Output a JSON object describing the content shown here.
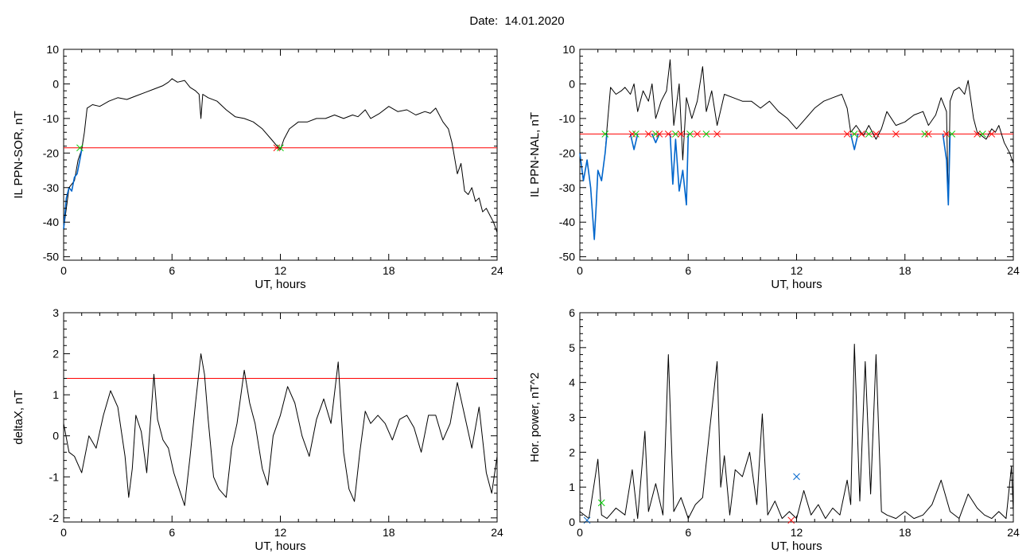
{
  "page": {
    "title": "Date:  14.01.2020"
  },
  "chart_data": [
    {
      "type": "line",
      "xlabel": "UT, hours",
      "ylabel": "IL PPN-SOR, nT",
      "xlim": [
        0,
        24
      ],
      "ylim": [
        -51,
        10
      ],
      "xticks": [
        0,
        6,
        12,
        18,
        24
      ],
      "yticks": [
        -50,
        -40,
        -30,
        -20,
        -10,
        0,
        10
      ],
      "threshold": {
        "value": -18.5,
        "color": "#ff0000"
      },
      "series": [
        {
          "color": "#000000",
          "x": [
            0,
            0.3,
            0.6,
            0.8,
            1.0,
            1.15,
            1.3,
            1.6,
            2,
            2.5,
            3,
            3.5,
            4,
            4.5,
            5,
            5.5,
            5.8,
            6,
            6.3,
            6.7,
            7,
            7.3,
            7.5,
            7.6,
            7.7,
            8,
            8.5,
            9,
            9.5,
            10,
            10.5,
            11,
            11.5,
            11.9,
            12,
            12.2,
            12.5,
            13,
            13.5,
            14,
            14.5,
            15,
            15.5,
            16,
            16.3,
            16.7,
            17,
            17.5,
            18,
            18.5,
            19,
            19.5,
            20,
            20.3,
            20.6,
            21,
            21.3,
            21.5,
            21.6,
            21.8,
            22,
            22.2,
            22.4,
            22.6,
            22.8,
            23,
            23.2,
            23.4,
            23.6,
            23.8,
            24
          ],
          "y": [
            -42,
            -30,
            -28,
            -22,
            -19,
            -14,
            -7,
            -6,
            -6.5,
            -5,
            -4,
            -4.5,
            -3.5,
            -2.5,
            -1.5,
            -0.5,
            0.5,
            1.5,
            0.5,
            1,
            -1,
            -2,
            -3,
            -10,
            -3,
            -4,
            -5,
            -7.5,
            -9.5,
            -10,
            -11,
            -13,
            -16,
            -18.5,
            -19,
            -16,
            -13,
            -11,
            -11,
            -10,
            -10,
            -9,
            -10,
            -9,
            -9.5,
            -7.5,
            -10,
            -8.5,
            -6.5,
            -8,
            -7.5,
            -9,
            -8,
            -8.5,
            -7,
            -11,
            -13,
            -17,
            -20,
            -26,
            -23,
            -31,
            -32,
            -30,
            -34,
            -33,
            -37,
            -36,
            -38,
            -40,
            -43
          ]
        },
        {
          "color": "#0066cc",
          "x": [
            0,
            0.15,
            0.3,
            0.45,
            0.6,
            0.75,
            0.9,
            1.0
          ],
          "y": [
            -42,
            -33,
            -30,
            -31,
            -27,
            -26,
            -22,
            -19
          ]
        }
      ],
      "markers": [
        {
          "x": 0.9,
          "y": -18.5,
          "color": "#00cc00"
        },
        {
          "x": 11.8,
          "y": -18.5,
          "color": "#ff0000"
        },
        {
          "x": 12.0,
          "y": -18.5,
          "color": "#00cc00"
        }
      ]
    },
    {
      "type": "line",
      "xlabel": "UT, hours",
      "ylabel": "IL PPN-NAL, nT",
      "xlim": [
        0,
        24
      ],
      "ylim": [
        -51,
        10
      ],
      "xticks": [
        0,
        6,
        12,
        18,
        24
      ],
      "yticks": [
        -50,
        -40,
        -30,
        -20,
        -10,
        0,
        10
      ],
      "threshold": {
        "value": -14.5,
        "color": "#ff0000"
      },
      "series": [
        {
          "color": "#000000",
          "x": [
            0,
            0.2,
            0.4,
            0.6,
            0.8,
            0.9,
            1.0,
            1.2,
            1.4,
            1.5,
            1.7,
            2,
            2.3,
            2.5,
            2.8,
            3,
            3.2,
            3.5,
            3.8,
            4,
            4.2,
            4.5,
            4.8,
            5.0,
            5.2,
            5.5,
            5.7,
            5.9,
            6.2,
            6.5,
            6.8,
            7,
            7.3,
            7.6,
            8,
            8.5,
            9,
            9.5,
            10,
            10.5,
            11,
            11.5,
            12,
            12.5,
            13,
            13.5,
            14,
            14.5,
            14.8,
            15.0,
            15.3,
            15.7,
            16,
            16.4,
            16.7,
            17,
            17.5,
            18,
            18.5,
            19,
            19.3,
            19.7,
            20,
            20.3,
            20.4,
            20.5,
            20.7,
            21,
            21.3,
            21.5,
            21.8,
            22,
            22.5,
            22.8,
            23,
            23.2,
            23.5,
            23.8,
            24
          ],
          "y": [
            -20,
            -28,
            -22,
            -30,
            -45,
            -36,
            -25,
            -28,
            -20,
            -13,
            -1,
            -3,
            -2,
            -1,
            -3,
            0,
            -8,
            -2,
            -5,
            0,
            -10,
            -5,
            -2,
            7,
            -12,
            0,
            -22,
            -4,
            -10,
            -5,
            5,
            -8,
            -2,
            -12,
            -3,
            -4,
            -5,
            -5,
            -7,
            -5,
            -8,
            -10,
            -13,
            -10,
            -7,
            -5,
            -4,
            -3,
            -7,
            -14,
            -12,
            -15,
            -12,
            -16,
            -13,
            -8,
            -12,
            -11,
            -9,
            -8,
            -12,
            -9,
            -4,
            -8,
            -35,
            -5,
            -2,
            -1,
            -3,
            1,
            -10,
            -14,
            -16,
            -13,
            -14,
            -12,
            -17,
            -20,
            -23
          ]
        },
        {
          "color": "#0066cc",
          "x": [
            0,
            0.2,
            0.4,
            0.6,
            0.8,
            0.9,
            1.0,
            1.2,
            1.4,
            1.5
          ],
          "y": [
            -20,
            -28,
            -22,
            -30,
            -45,
            -36,
            -25,
            -28,
            -20,
            -14.5
          ]
        },
        {
          "color": "#0066cc",
          "x": [
            2.8,
            3.0,
            3.2
          ],
          "y": [
            -14.5,
            -19,
            -14.5
          ]
        },
        {
          "color": "#0066cc",
          "x": [
            4.0,
            4.2,
            4.4
          ],
          "y": [
            -14.5,
            -17,
            -14.5
          ]
        },
        {
          "color": "#0066cc",
          "x": [
            5.0,
            5.15,
            5.3,
            5.5,
            5.7,
            5.9,
            6.0
          ],
          "y": [
            -14.5,
            -29,
            -16,
            -31,
            -25,
            -35,
            -14.5
          ]
        },
        {
          "color": "#0066cc",
          "x": [
            15.0,
            15.2,
            15.4
          ],
          "y": [
            -14.5,
            -19,
            -14.5
          ]
        },
        {
          "color": "#0066cc",
          "x": [
            20.1,
            20.3,
            20.4,
            20.5
          ],
          "y": [
            -14.5,
            -22,
            -35,
            -14.5
          ]
        }
      ],
      "markers": [
        {
          "x": 1.4,
          "y": -14.5,
          "color": "#00cc00"
        },
        {
          "x": 2.9,
          "y": -14.5,
          "color": "#ff0000"
        },
        {
          "x": 3.1,
          "y": -14.5,
          "color": "#00cc00"
        },
        {
          "x": 3.8,
          "y": -14.5,
          "color": "#ff0000"
        },
        {
          "x": 4.2,
          "y": -14.5,
          "color": "#00cc00"
        },
        {
          "x": 4.4,
          "y": -14.5,
          "color": "#ff0000"
        },
        {
          "x": 4.9,
          "y": -14.5,
          "color": "#ff0000"
        },
        {
          "x": 5.3,
          "y": -14.5,
          "color": "#00cc00"
        },
        {
          "x": 5.6,
          "y": -14.5,
          "color": "#ff0000"
        },
        {
          "x": 6.1,
          "y": -14.5,
          "color": "#00cc00"
        },
        {
          "x": 6.5,
          "y": -14.5,
          "color": "#ff0000"
        },
        {
          "x": 7.0,
          "y": -14.5,
          "color": "#00cc00"
        },
        {
          "x": 7.6,
          "y": -14.5,
          "color": "#ff0000"
        },
        {
          "x": 14.8,
          "y": -14.5,
          "color": "#ff0000"
        },
        {
          "x": 15.2,
          "y": -14.5,
          "color": "#00cc00"
        },
        {
          "x": 15.6,
          "y": -14.5,
          "color": "#ff0000"
        },
        {
          "x": 16.0,
          "y": -14.5,
          "color": "#00cc00"
        },
        {
          "x": 16.4,
          "y": -14.5,
          "color": "#ff0000"
        },
        {
          "x": 17.5,
          "y": -14.5,
          "color": "#ff0000"
        },
        {
          "x": 19.1,
          "y": -14.5,
          "color": "#00cc00"
        },
        {
          "x": 19.3,
          "y": -14.5,
          "color": "#ff0000"
        },
        {
          "x": 20.3,
          "y": -14.5,
          "color": "#ff0000"
        },
        {
          "x": 20.6,
          "y": -14.5,
          "color": "#00cc00"
        },
        {
          "x": 22.0,
          "y": -14.5,
          "color": "#ff0000"
        },
        {
          "x": 22.3,
          "y": -14.5,
          "color": "#00cc00"
        },
        {
          "x": 22.8,
          "y": -14.5,
          "color": "#ff0000"
        }
      ]
    },
    {
      "type": "line",
      "xlabel": "UT, hours",
      "ylabel": "deltaX, nT",
      "xlim": [
        0,
        24
      ],
      "ylim": [
        -2.1,
        3
      ],
      "xticks": [
        0,
        6,
        12,
        18,
        24
      ],
      "yticks": [
        -2,
        -1,
        0,
        1,
        2,
        3
      ],
      "threshold": {
        "value": 1.4,
        "color": "#ff0000"
      },
      "series": [
        {
          "color": "#000000",
          "x": [
            0,
            0.3,
            0.6,
            1.0,
            1.4,
            1.8,
            2.2,
            2.6,
            3.0,
            3.4,
            3.6,
            3.8,
            4.0,
            4.3,
            4.6,
            5.0,
            5.2,
            5.5,
            5.8,
            6.1,
            6.4,
            6.7,
            7.0,
            7.3,
            7.6,
            7.8,
            8.0,
            8.3,
            8.6,
            9.0,
            9.3,
            9.6,
            10.0,
            10.3,
            10.6,
            11.0,
            11.3,
            11.6,
            12.0,
            12.4,
            12.8,
            13.2,
            13.6,
            14.0,
            14.4,
            14.8,
            15.2,
            15.5,
            15.8,
            16.1,
            16.4,
            16.7,
            17.0,
            17.4,
            17.8,
            18.2,
            18.6,
            19.0,
            19.4,
            19.8,
            20.2,
            20.6,
            21.0,
            21.4,
            21.8,
            22.2,
            22.6,
            23.0,
            23.4,
            23.7,
            24
          ],
          "y": [
            0.3,
            -0.4,
            -0.5,
            -0.9,
            0,
            -0.3,
            0.5,
            1.1,
            0.7,
            -0.5,
            -1.5,
            -0.8,
            0.5,
            0.1,
            -0.9,
            1.5,
            0.4,
            -0.1,
            -0.3,
            -0.9,
            -1.3,
            -1.7,
            -0.5,
            0.8,
            2.0,
            1.5,
            0.4,
            -1.0,
            -1.3,
            -1.5,
            -0.3,
            0.3,
            1.6,
            0.8,
            0.3,
            -0.8,
            -1.2,
            0,
            0.5,
            1.2,
            0.8,
            0,
            -0.5,
            0.4,
            0.9,
            0.3,
            1.8,
            -0.4,
            -1.3,
            -1.6,
            -0.4,
            0.6,
            0.3,
            0.5,
            0.3,
            -0.1,
            0.4,
            0.5,
            0.2,
            -0.4,
            0.5,
            0.5,
            -0.1,
            0.3,
            1.3,
            0.5,
            -0.3,
            0.7,
            -0.9,
            -1.4,
            -0.5
          ]
        }
      ],
      "markers": []
    },
    {
      "type": "line",
      "xlabel": "UT, hours",
      "ylabel": "Hor. power, nT^2",
      "xlim": [
        0,
        24
      ],
      "ylim": [
        0,
        6
      ],
      "xticks": [
        0,
        6,
        12,
        18,
        24
      ],
      "yticks": [
        0,
        1,
        2,
        3,
        4,
        5,
        6
      ],
      "threshold": null,
      "series": [
        {
          "color": "#000000",
          "x": [
            0,
            0.5,
            1.0,
            1.2,
            1.5,
            2.0,
            2.5,
            2.9,
            3.2,
            3.6,
            3.8,
            4.2,
            4.6,
            4.9,
            5.2,
            5.6,
            6.0,
            6.4,
            6.8,
            7.2,
            7.6,
            7.8,
            8.0,
            8.3,
            8.6,
            9.0,
            9.4,
            9.8,
            10.1,
            10.4,
            10.8,
            11.2,
            11.6,
            12.0,
            12.4,
            12.8,
            13.2,
            13.6,
            14.0,
            14.4,
            14.8,
            15.0,
            15.2,
            15.5,
            15.8,
            16.1,
            16.4,
            16.7,
            17.0,
            17.5,
            18.0,
            18.5,
            19.0,
            19.5,
            20.0,
            20.5,
            21.0,
            21.5,
            22.0,
            22.4,
            22.8,
            23.2,
            23.6,
            23.9,
            24
          ],
          "y": [
            0.3,
            0.1,
            1.8,
            0.2,
            0.1,
            0.4,
            0.2,
            1.5,
            0.1,
            2.6,
            0.3,
            1.1,
            0.2,
            4.8,
            0.3,
            0.7,
            0.1,
            0.5,
            0.7,
            2.7,
            4.6,
            1.0,
            1.9,
            0.2,
            1.5,
            1.3,
            2.0,
            0.5,
            3.1,
            0.2,
            0.6,
            0.1,
            0.3,
            0.1,
            0.9,
            0.2,
            0.5,
            0.1,
            0.4,
            0.2,
            1.2,
            0.5,
            5.1,
            0.6,
            4.6,
            0.8,
            4.8,
            0.3,
            0.2,
            0.1,
            0.3,
            0.1,
            0.2,
            0.5,
            1.2,
            0.3,
            0.1,
            0.8,
            0.4,
            0.2,
            0.1,
            0.3,
            0.1,
            1.6,
            0.3
          ]
        }
      ],
      "markers": [
        {
          "x": 0.4,
          "y": 0.05,
          "color": "#0066cc"
        },
        {
          "x": 1.2,
          "y": 0.55,
          "color": "#00cc00"
        },
        {
          "x": 11.7,
          "y": 0.05,
          "color": "#ff0000"
        },
        {
          "x": 12.0,
          "y": 1.3,
          "color": "#0066cc"
        }
      ]
    }
  ]
}
